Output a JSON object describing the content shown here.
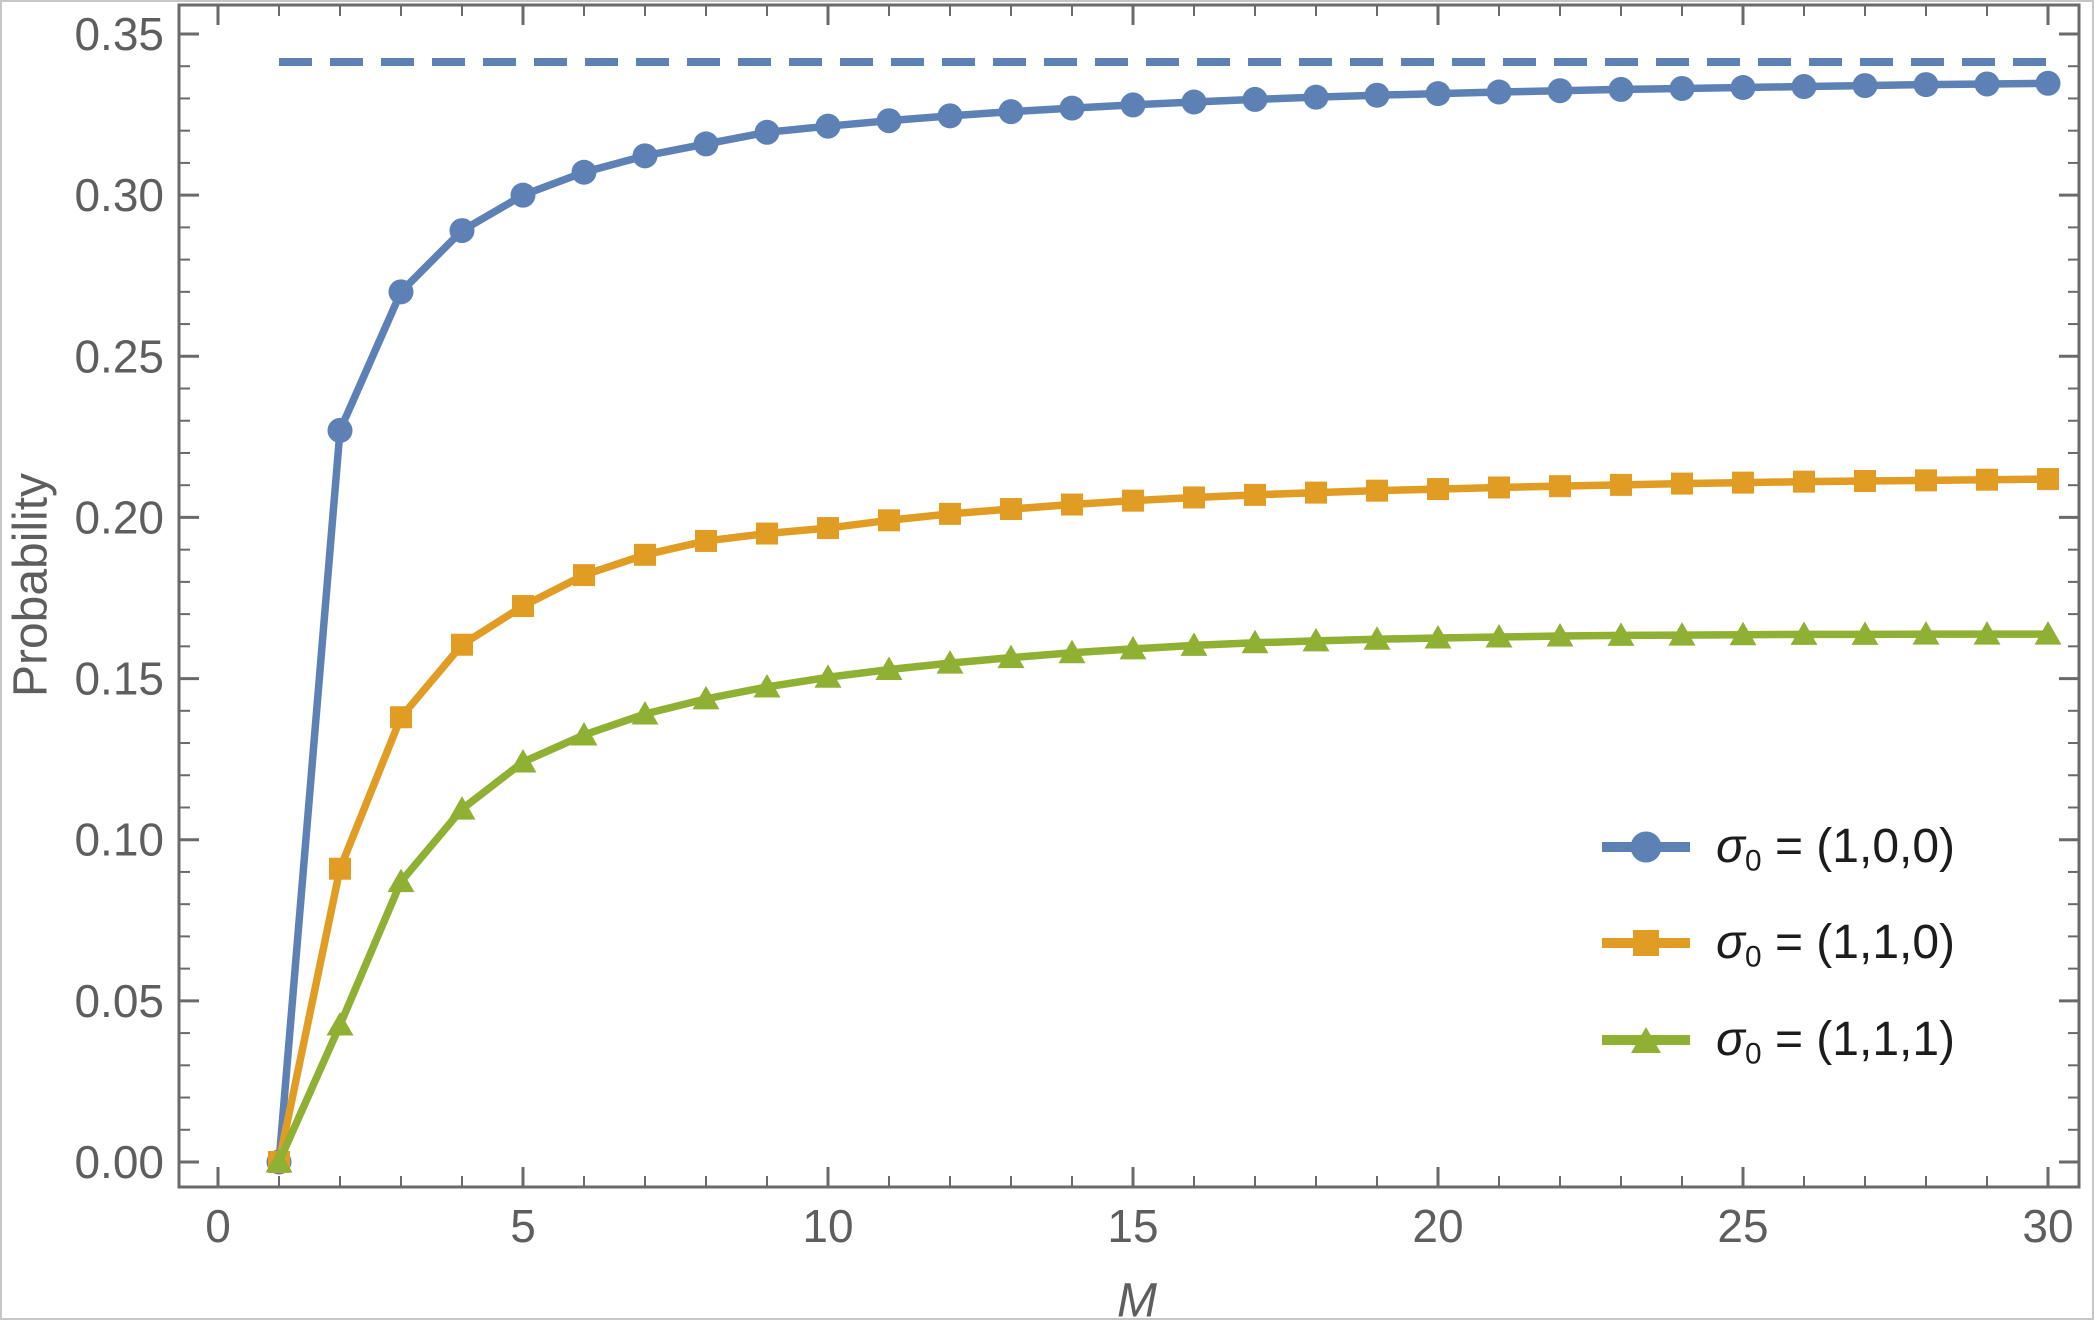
{
  "colors": {
    "series_blue": "#5e81b5",
    "series_orange": "#e19c24",
    "series_green": "#8fb032",
    "frame_gray": "#6a6a6a",
    "tick_label_gray": "#5e5e5e",
    "legend_text": "#1c1c1c",
    "background": "#ffffff"
  },
  "chart_data": {
    "type": "line",
    "title": "",
    "xlabel": "M",
    "ylabel": "Probability",
    "xlim": [
      0,
      30
    ],
    "ylim": [
      0,
      0.35
    ],
    "grid": "off",
    "frame": "on",
    "legend_position": "inside lower right",
    "x_major_ticks": [
      0,
      5,
      10,
      15,
      20,
      25,
      30
    ],
    "x_tick_labels": [
      "0",
      "5",
      "10",
      "15",
      "20",
      "25",
      "30"
    ],
    "x_minor_tick_step": 1,
    "y_major_ticks": [
      0,
      0.05,
      0.1,
      0.15,
      0.2,
      0.25,
      0.3,
      0.35
    ],
    "y_tick_labels": [
      "0.00",
      "0.05",
      "0.10",
      "0.15",
      "0.20",
      "0.25",
      "0.30",
      "0.35"
    ],
    "y_minor_tick_step": 0.01,
    "asymptote": {
      "value": 0.3413,
      "style": "dashed",
      "color": "#5e81b5"
    },
    "x": [
      1,
      2,
      3,
      4,
      5,
      6,
      7,
      8,
      9,
      10,
      11,
      12,
      13,
      14,
      15,
      16,
      17,
      18,
      19,
      20,
      21,
      22,
      23,
      24,
      25,
      26,
      27,
      28,
      29,
      30
    ],
    "series": [
      {
        "name": "sigma0 = (1,0,0)",
        "marker": "circle",
        "color": "#5e81b5",
        "values": [
          0,
          0.227,
          0.27,
          0.289,
          0.3,
          0.3071,
          0.3122,
          0.3159,
          0.3195,
          0.3214,
          0.3231,
          0.3246,
          0.3259,
          0.327,
          0.328,
          0.3289,
          0.3297,
          0.3304,
          0.331,
          0.3315,
          0.332,
          0.3324,
          0.3328,
          0.3331,
          0.3334,
          0.3337,
          0.334,
          0.3343,
          0.3345,
          0.3347
        ]
      },
      {
        "name": "sigma0 = (1,1,0)",
        "marker": "square",
        "color": "#e19c24",
        "values": [
          0,
          0.091,
          0.138,
          0.1605,
          0.1725,
          0.1821,
          0.1884,
          0.1927,
          0.195,
          0.1967,
          0.1991,
          0.2011,
          0.2026,
          0.204,
          0.2052,
          0.2062,
          0.207,
          0.2077,
          0.2083,
          0.2088,
          0.2093,
          0.2097,
          0.2101,
          0.2105,
          0.2108,
          0.2111,
          0.2113,
          0.2115,
          0.2117,
          0.2119
        ]
      },
      {
        "name": "sigma0 = (1,1,1)",
        "marker": "triangle",
        "color": "#8fb032",
        "values": [
          0,
          0.0425,
          0.087,
          0.1095,
          0.1241,
          0.1325,
          0.139,
          0.1437,
          0.1474,
          0.1504,
          0.1528,
          0.1548,
          0.1565,
          0.158,
          0.1592,
          0.1603,
          0.1611,
          0.1617,
          0.1622,
          0.1626,
          0.1629,
          0.1632,
          0.1634,
          0.1635,
          0.1636,
          0.1637,
          0.1637,
          0.1638,
          0.1638,
          0.1638
        ]
      }
    ]
  },
  "legend": {
    "entries": [
      {
        "label": "σ₀ = (1,0,0)",
        "sigma": "σ",
        "sub": "0",
        "eq": "= (1,0,0)",
        "marker": "circle",
        "color": "#5e81b5"
      },
      {
        "label": "σ₀ = (1,1,0)",
        "sigma": "σ",
        "sub": "0",
        "eq": "= (1,1,0)",
        "marker": "square",
        "color": "#e19c24"
      },
      {
        "label": "σ₀ = (1,1,1)",
        "sigma": "σ",
        "sub": "0",
        "eq": "= (1,1,1)",
        "marker": "triangle",
        "color": "#8fb032"
      }
    ]
  }
}
